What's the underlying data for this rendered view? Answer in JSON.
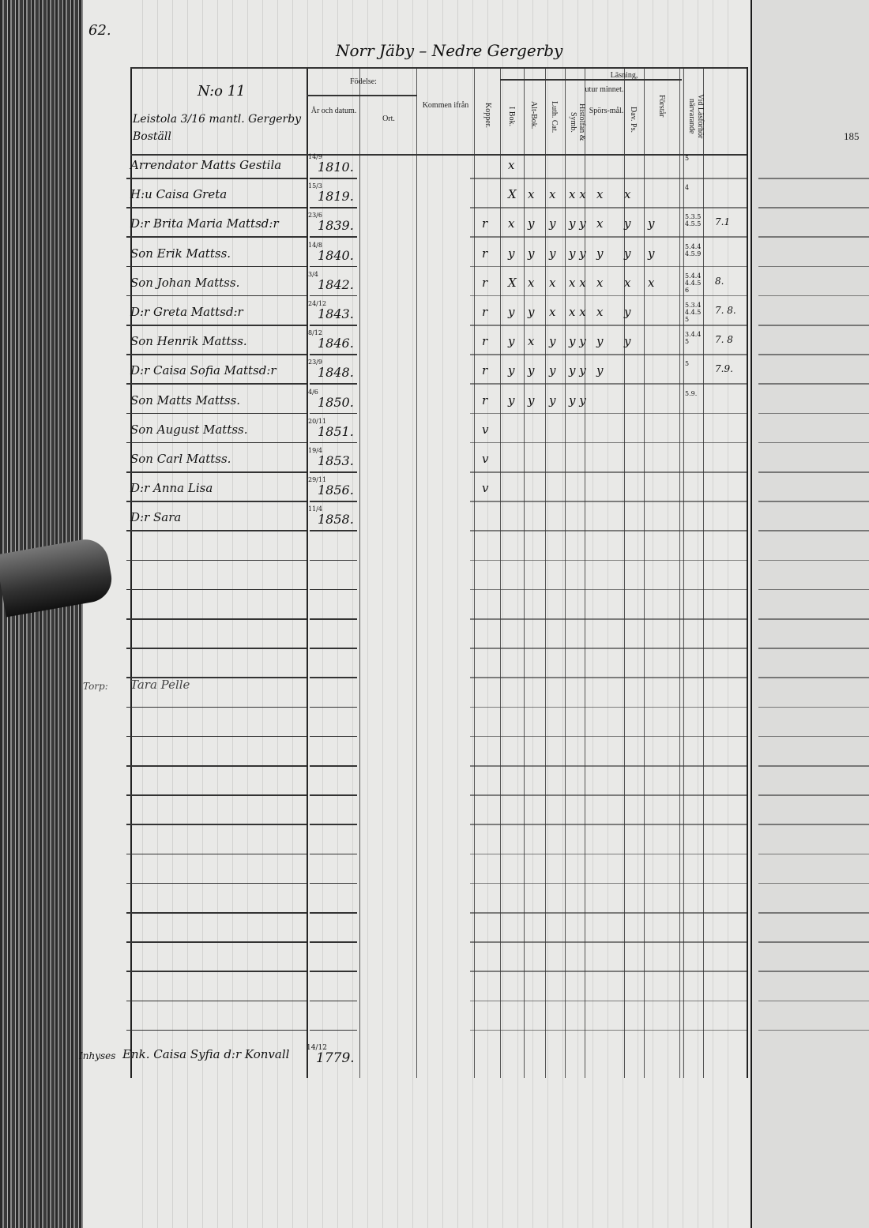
{
  "page_number": "62.",
  "page_title": "Norr Jäby – Nedre Gergerby",
  "household": {
    "number": "N:o 11",
    "place": "Leistola 3/16 mantl. Gergerby Boställ"
  },
  "headers": {
    "fodelse": "Födelse:",
    "ar_datum": "År och datum.",
    "ort": "Ort.",
    "kommen": "Kommen ifrån",
    "kopper": "Kopper.",
    "lasning": "Läsning,",
    "utur": "utur minnet.",
    "i_bok": "I Bok.",
    "alt_bok": "Alt-Bok.",
    "luth_cat": "Luth. Cat.",
    "hist": "Histolfan & Symb.",
    "spors": "Spörs-mål.",
    "dav_ps": "Dav. Ps.",
    "forstar": "Förstår",
    "vid_las": "Vid Läsförhör närvarande"
  },
  "next_page_header": "185",
  "rows": [
    {
      "name": "Arrendator Matts Gestila",
      "date": "14/9",
      "year": "1810.",
      "marks": [
        "",
        "x",
        "",
        "",
        "",
        "",
        "",
        "",
        ""
      ],
      "las": "5",
      "extra": ""
    },
    {
      "name": "H:u Caisa Greta",
      "date": "15/3",
      "year": "1819.",
      "marks": [
        "",
        "X",
        "x",
        "x",
        "x x",
        "x",
        "x",
        "",
        ""
      ],
      "las": "4",
      "extra": ""
    },
    {
      "name": "D:r Brita Maria Mattsd:r",
      "date": "23/6",
      "year": "1839.",
      "marks": [
        "r",
        "x",
        "y",
        "y",
        "y y",
        "x",
        "y",
        "y",
        ""
      ],
      "las": "5.3.5 4.5.5",
      "extra": "7.1"
    },
    {
      "name": "Son Erik Mattss.",
      "date": "14/8",
      "year": "1840.",
      "marks": [
        "r",
        "y",
        "y",
        "y",
        "y y",
        "y",
        "y",
        "y",
        ""
      ],
      "las": "5.4.4 4.5.9",
      "extra": ""
    },
    {
      "name": "Son Johan Mattss.",
      "date": "3/4",
      "year": "1842.",
      "marks": [
        "r",
        "X",
        "x",
        "x",
        "x x",
        "x",
        "x",
        "x",
        ""
      ],
      "las": "5.4.4 4.4.5 6",
      "extra": "8."
    },
    {
      "name": "D:r Greta Mattsd:r",
      "date": "24/12",
      "year": "1843.",
      "marks": [
        "r",
        "y",
        "y",
        "x",
        "x x",
        "x",
        "y",
        "",
        ""
      ],
      "las": "5.3.4 4.4.5 5",
      "extra": "7. 8."
    },
    {
      "name": "Son Henrik Mattss.",
      "date": "8/12",
      "year": "1846.",
      "marks": [
        "r",
        "y",
        "x",
        "y",
        "y y",
        "y",
        "y",
        "",
        ""
      ],
      "las": "3.4.4 5",
      "extra": "7. 8"
    },
    {
      "name": "D:r Caisa Sofia Mattsd:r",
      "date": "23/9",
      "year": "1848.",
      "marks": [
        "r",
        "y",
        "y",
        "y",
        "y y",
        "y",
        "",
        "",
        ""
      ],
      "las": "5",
      "extra": "7.9."
    },
    {
      "name": "Son Matts Mattss.",
      "date": "4/6",
      "year": "1850.",
      "marks": [
        "r",
        "y",
        "y",
        "y",
        "y y",
        "",
        "",
        "",
        ""
      ],
      "las": "5.9.",
      "extra": ""
    },
    {
      "name": "Son August Mattss.",
      "date": "20/11",
      "year": "1851.",
      "marks": [
        "v",
        "",
        "",
        "",
        "",
        "",
        "",
        "",
        ""
      ],
      "las": "",
      "extra": ""
    },
    {
      "name": "Son Carl Mattss.",
      "date": "19/4",
      "year": "1853.",
      "marks": [
        "v",
        "",
        "",
        "",
        "",
        "",
        "",
        "",
        ""
      ],
      "las": "",
      "extra": ""
    },
    {
      "name": "D:r Anna Lisa",
      "date": "29/11",
      "year": "1856.",
      "marks": [
        "v",
        "",
        "",
        "",
        "",
        "",
        "",
        "",
        ""
      ],
      "las": "",
      "extra": ""
    },
    {
      "name": "D:r Sara",
      "date": "11/4",
      "year": "1858.",
      "marks": [
        "",
        "",
        "",
        "",
        "",
        "",
        "",
        "",
        ""
      ],
      "las": "",
      "extra": ""
    }
  ],
  "torp": {
    "label": "Torp:",
    "name": "Tara Pelle"
  },
  "inhyses": {
    "label": "Inhyses",
    "name": "Enk. Caisa Syfia d:r Konvall",
    "date": "14/12",
    "year": "1779."
  }
}
